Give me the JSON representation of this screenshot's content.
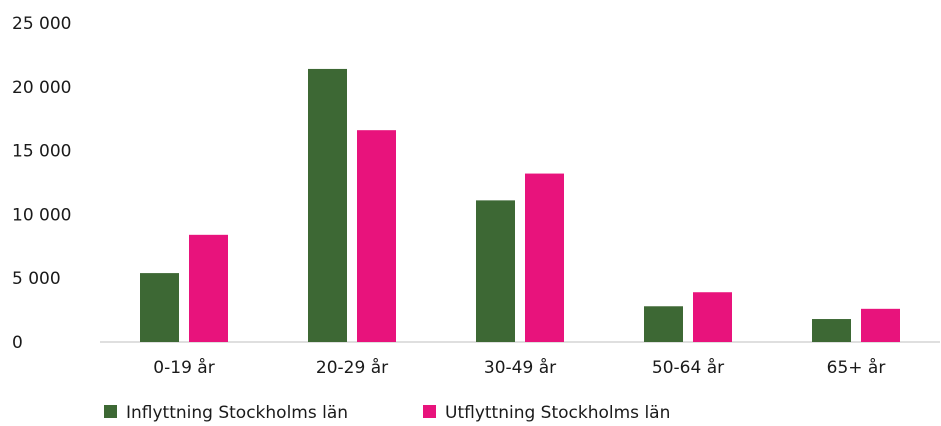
{
  "chart_data": {
    "type": "bar",
    "title": "",
    "xlabel": "",
    "ylabel": "",
    "categories": [
      "0-19 år",
      "20-29 år",
      "30-49 år",
      "50-64 år",
      "65+ år"
    ],
    "series": [
      {
        "name": "Inflyttning Stockholms län",
        "color": "#3d6834",
        "values": [
          5400,
          21400,
          11100,
          2800,
          1800
        ]
      },
      {
        "name": "Utflyttning Stockholms län",
        "color": "#e8137c",
        "values": [
          8400,
          16600,
          13200,
          3900,
          2600
        ]
      }
    ],
    "ylim": [
      0,
      25000
    ],
    "yticks": [
      0,
      5000,
      10000,
      15000,
      20000,
      25000
    ],
    "ytick_labels": [
      "0",
      "5 000",
      "10 000",
      "15 000",
      "20 000",
      "25 000"
    ],
    "grid": false,
    "legend": "bottom-left"
  }
}
